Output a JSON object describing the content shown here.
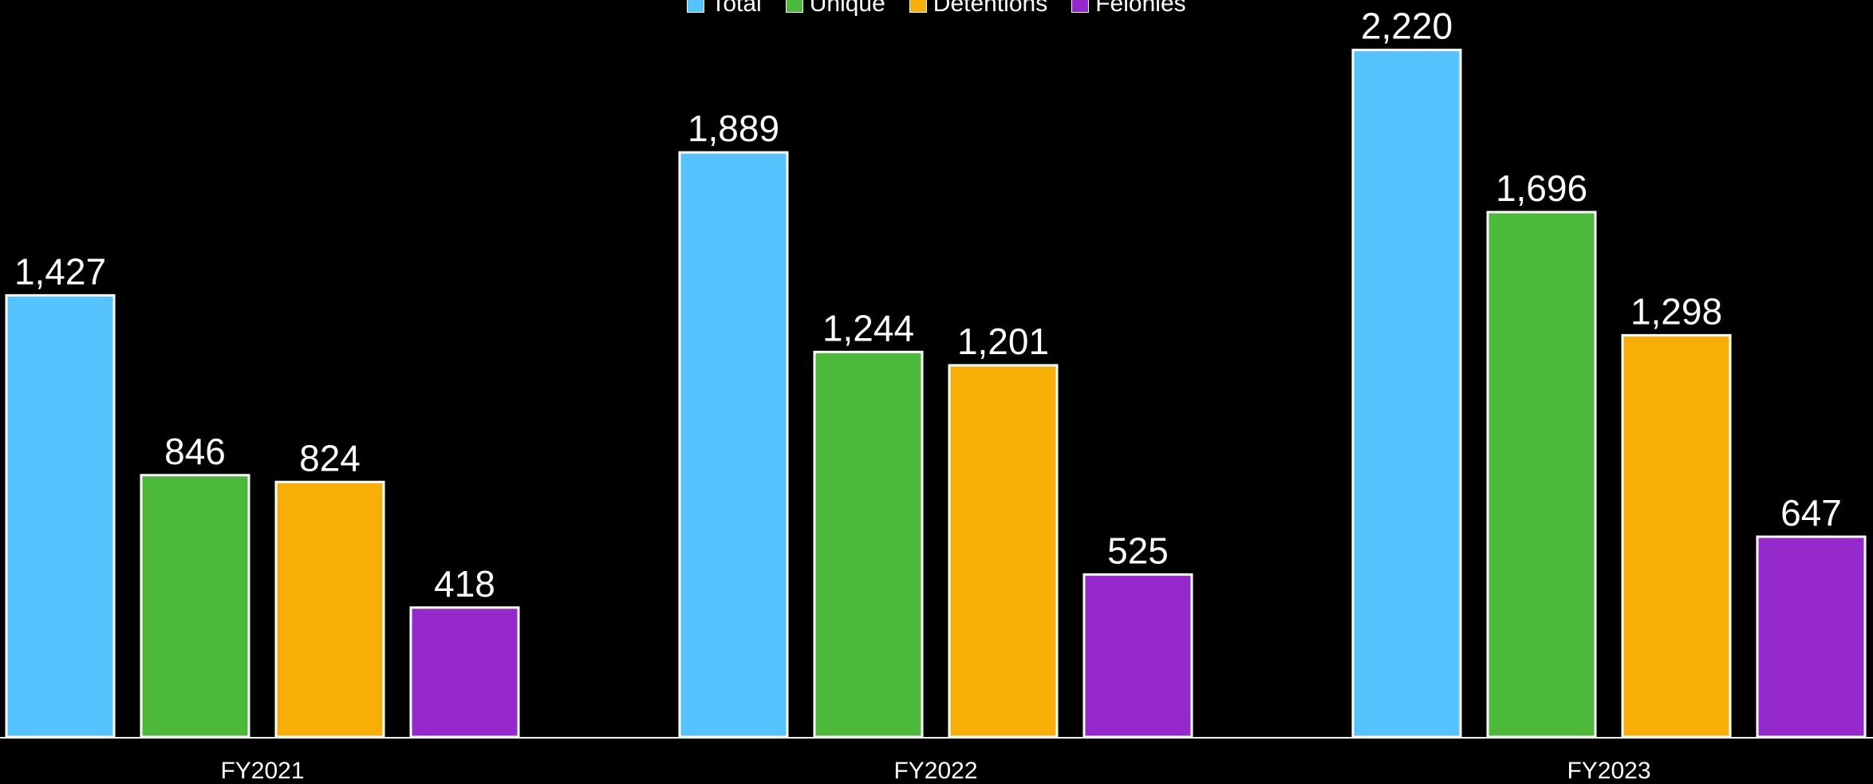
{
  "chart_data": {
    "type": "bar",
    "title": "",
    "xlabel": "",
    "ylabel": "",
    "ylim": [
      0,
      2400
    ],
    "grid": false,
    "legend_position": "top-center",
    "categories": [
      "FY2021",
      "FY2022",
      "FY2023"
    ],
    "series": [
      {
        "name": "Total",
        "color": "#55C3FF",
        "values": [
          1427,
          1889,
          2220
        ]
      },
      {
        "name": "Unique",
        "color": "#4CB93A",
        "values": [
          846,
          1244,
          1696
        ]
      },
      {
        "name": "Detentions",
        "color": "#F7AE06",
        "values": [
          824,
          1201,
          1298
        ]
      },
      {
        "name": "Felonies",
        "color": "#9629CC",
        "values": [
          418,
          525,
          647
        ]
      }
    ]
  }
}
